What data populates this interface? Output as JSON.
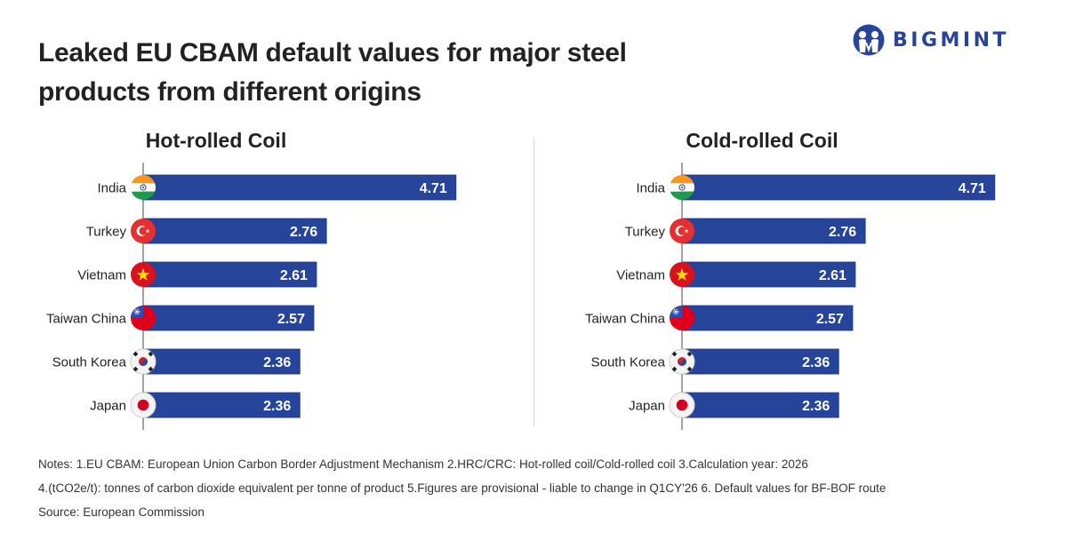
{
  "header": {
    "title_line1": "Leaked EU CBAM default values for major steel",
    "title_line2": "products from different origins",
    "logo_text": "BIGMINT",
    "brand_color": "#26459a"
  },
  "chart_data": [
    {
      "type": "bar",
      "orientation": "horizontal",
      "title": "Hot-rolled Coil",
      "categories": [
        "India",
        "Turkey",
        "Vietnam",
        "Taiwan China",
        "South Korea",
        "Japan"
      ],
      "values": [
        4.71,
        2.76,
        2.61,
        2.57,
        2.36,
        2.36
      ],
      "value_labels": [
        "4.71",
        "2.76",
        "2.61",
        "2.57",
        "2.36",
        "2.36"
      ],
      "flags": [
        "india-flag",
        "turkey-flag",
        "vietnam-flag",
        "taiwan-flag",
        "south-korea-flag",
        "japan-flag"
      ],
      "xlabel": "",
      "ylabel": "",
      "bar_color": "#26459a",
      "grid": false
    },
    {
      "type": "bar",
      "orientation": "horizontal",
      "title": "Cold-rolled Coil",
      "categories": [
        "India",
        "Turkey",
        "Vietnam",
        "Taiwan China",
        "South Korea",
        "Japan"
      ],
      "values": [
        4.71,
        2.76,
        2.61,
        2.57,
        2.36,
        2.36
      ],
      "value_labels": [
        "4.71",
        "2.76",
        "2.61",
        "2.57",
        "2.36",
        "2.36"
      ],
      "flags": [
        "india-flag",
        "turkey-flag",
        "vietnam-flag",
        "taiwan-flag",
        "south-korea-flag",
        "japan-flag"
      ],
      "xlabel": "",
      "ylabel": "",
      "bar_color": "#26459a",
      "grid": false
    }
  ],
  "notes": {
    "line1": "Notes: 1.EU CBAM: European Union Carbon Border Adjustment Mechanism  2.HRC/CRC: Hot-rolled coil/Cold-rolled coil  3.Calculation year: 2026",
    "line2": "4.(tCO2e/t): tonnes of carbon dioxide equivalent per tonne of product  5.Figures are provisional - liable to change in Q1CY'26  6. Default values for BF-BOF route",
    "source": "Source: European Commission"
  }
}
